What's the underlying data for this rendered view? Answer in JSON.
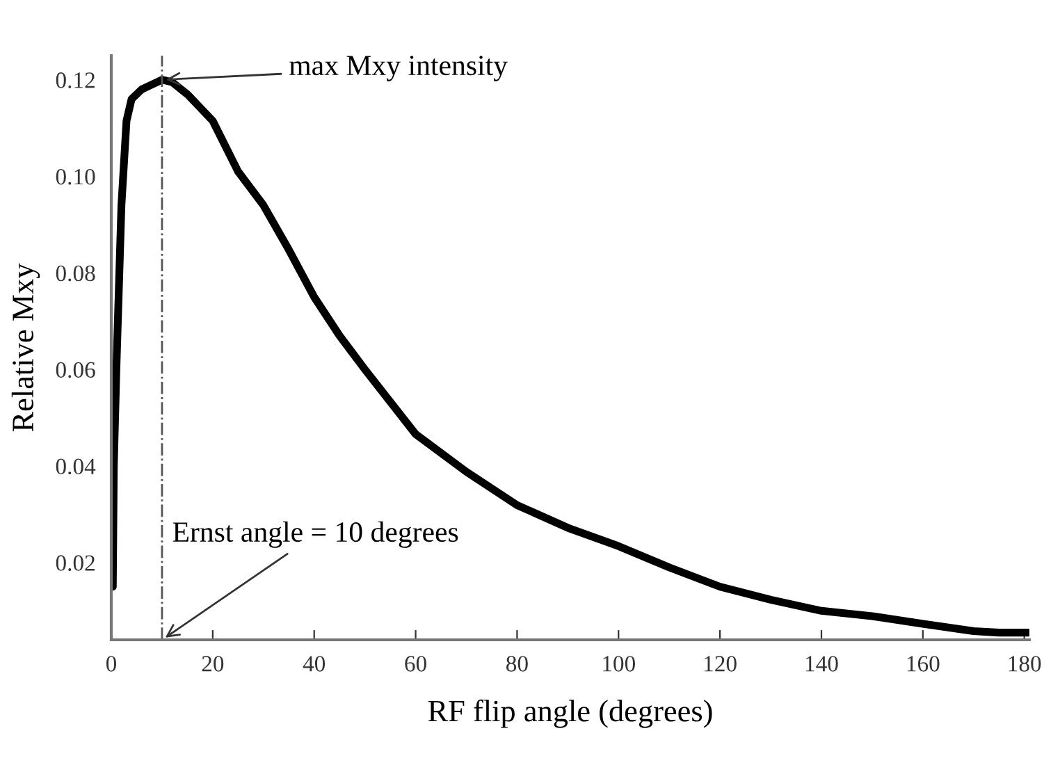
{
  "chart_data": {
    "type": "line",
    "xlabel": "RF flip angle (degrees)",
    "ylabel": "Relative Mxy",
    "x": [
      0.3,
      0.5,
      1,
      2,
      3,
      4,
      6,
      10,
      12,
      15,
      20,
      25,
      30,
      35,
      40,
      45,
      50,
      60,
      70,
      80,
      90,
      100,
      110,
      120,
      130,
      140,
      150,
      160,
      170,
      175,
      181
    ],
    "series": [
      {
        "color": "#000000",
        "values": [
          0.015,
          0.04,
          0.06,
          0.094,
          0.1115,
          0.116,
          0.118,
          0.12,
          0.1195,
          0.117,
          0.1115,
          0.101,
          0.094,
          0.0848,
          0.075,
          0.067,
          0.06,
          0.0466,
          0.0388,
          0.0319,
          0.0272,
          0.0234,
          0.019,
          0.015,
          0.0123,
          0.01,
          0.0089,
          0.0073,
          0.0058,
          0.0055,
          0.0055
        ]
      }
    ],
    "xlim": [
      0,
      181
    ],
    "ylim": [
      0.004,
      0.125
    ],
    "xticks": [
      0,
      20,
      40,
      60,
      80,
      100,
      120,
      140,
      160,
      180
    ],
    "yticks": [
      0.02,
      0.04,
      0.06,
      0.08,
      {
        "value": 0.1,
        "label": "0.10"
      },
      {
        "value": 0.12,
        "label": "0.12"
      }
    ],
    "ref_lines": [
      {
        "axis": "x",
        "value": 10,
        "color": "#555555",
        "line_style": "dashdot"
      }
    ],
    "annotations": [
      {
        "text": "max Mxy intensity",
        "x": 10,
        "y": 0.12
      },
      {
        "text": "Ernst angle = 10 degrees",
        "x": 10,
        "y": 0.004
      }
    ],
    "grid": false,
    "legend": false,
    "marker": "none",
    "line_style": "solid"
  }
}
